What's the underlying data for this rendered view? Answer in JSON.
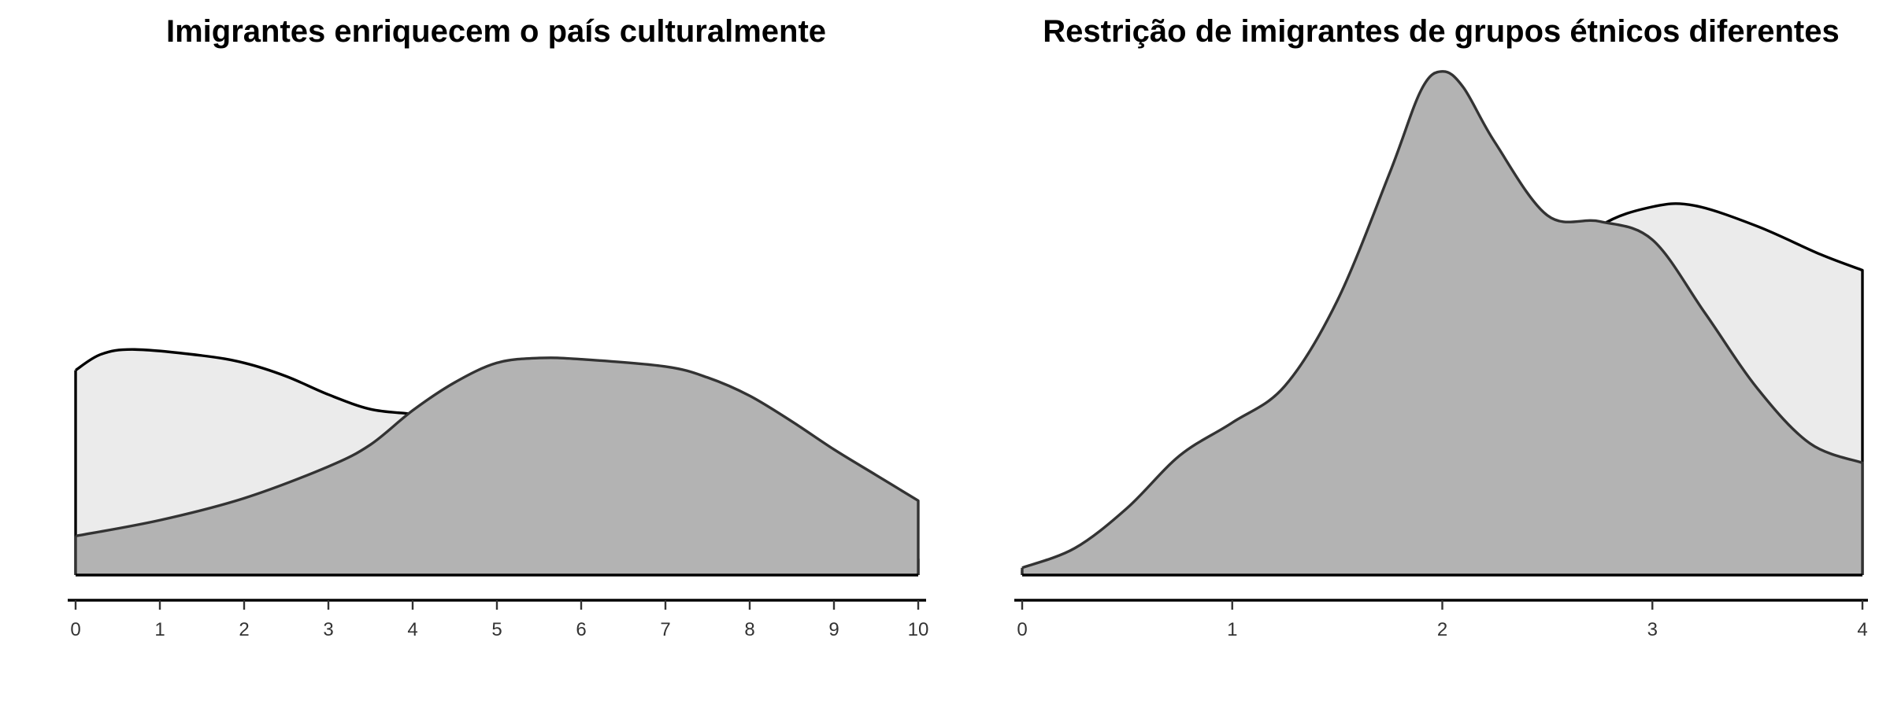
{
  "chart_data": [
    {
      "type": "area",
      "title": "Imigrantes enriquecem o país culturalmente",
      "xlabel": "",
      "ylabel": "",
      "xlim": [
        0,
        10
      ],
      "ylim": [
        0,
        0.42
      ],
      "xticks": [
        "0",
        "1",
        "2",
        "3",
        "4",
        "5",
        "6",
        "7",
        "8",
        "9",
        "10"
      ],
      "grid": false,
      "legend": "none",
      "series": [
        {
          "fill": "#ebebeb",
          "x": [
            0,
            0.3,
            0.7,
            1.5,
            2.0,
            2.5,
            3.0,
            3.5,
            4.0,
            4.5,
            5.0,
            5.5,
            6.0,
            6.5,
            7.0,
            8.0,
            9.0,
            10.0
          ],
          "y": [
            0.168,
            0.181,
            0.185,
            0.18,
            0.174,
            0.163,
            0.148,
            0.136,
            0.132,
            0.127,
            0.113,
            0.092,
            0.069,
            0.055,
            0.048,
            0.036,
            0.023,
            0.013
          ]
        },
        {
          "fill": "#b3b3b3",
          "x": [
            0,
            1,
            2,
            3,
            3.5,
            4.0,
            4.5,
            5.0,
            5.5,
            6.0,
            7.0,
            7.5,
            8.0,
            8.5,
            9.0,
            9.5,
            10.0
          ],
          "y": [
            0.032,
            0.045,
            0.063,
            0.089,
            0.107,
            0.135,
            0.158,
            0.174,
            0.178,
            0.177,
            0.171,
            0.162,
            0.147,
            0.126,
            0.103,
            0.082,
            0.061
          ]
        }
      ]
    },
    {
      "type": "area",
      "title": "Restrição de imigrantes de grupos étnicos diferentes",
      "xlabel": "",
      "ylabel": "",
      "xlim": [
        0,
        4
      ],
      "ylim": [
        0,
        0.42
      ],
      "xticks": [
        "0",
        "1",
        "2",
        "3",
        "4"
      ],
      "grid": false,
      "legend": "none",
      "series": [
        {
          "fill": "#ebebeb",
          "x": [
            0,
            0.5,
            1.0,
            1.25,
            1.5,
            2.0,
            2.5,
            2.75,
            3.0,
            3.2,
            3.5,
            3.8,
            4.0
          ],
          "y": [
            0.004,
            0.007,
            0.035,
            0.065,
            0.1,
            0.17,
            0.245,
            0.286,
            0.302,
            0.303,
            0.286,
            0.263,
            0.25
          ]
        },
        {
          "fill": "#b3b3b3",
          "x": [
            0,
            0.25,
            0.5,
            0.75,
            1.0,
            1.25,
            1.5,
            1.75,
            1.9,
            2.0,
            2.1,
            2.25,
            2.5,
            2.75,
            3.0,
            3.25,
            3.5,
            3.75,
            4.0
          ],
          "y": [
            0.006,
            0.022,
            0.055,
            0.098,
            0.125,
            0.155,
            0.225,
            0.33,
            0.398,
            0.413,
            0.4,
            0.355,
            0.295,
            0.29,
            0.275,
            0.215,
            0.153,
            0.108,
            0.092
          ]
        }
      ]
    }
  ]
}
